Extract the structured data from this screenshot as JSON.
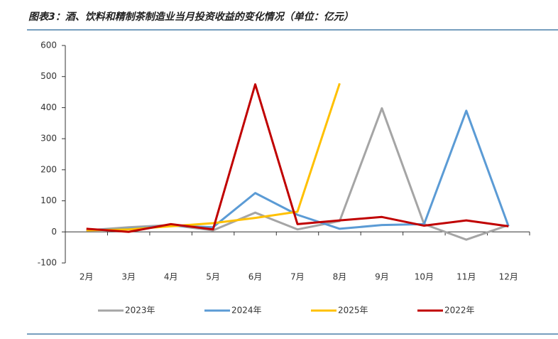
{
  "chart_data": {
    "type": "line",
    "title": "图表3：酒、饮料和精制茶制造业当月投资收益的变化情况（单位：亿元）",
    "categories": [
      "2月",
      "3月",
      "4月",
      "5月",
      "6月",
      "7月",
      "8月",
      "9月",
      "10月",
      "11月",
      "12月"
    ],
    "series": [
      {
        "name": "2023年",
        "color": "#a5a5a5",
        "values": [
          5,
          15,
          22,
          5,
          62,
          8,
          35,
          398,
          25,
          -25,
          22
        ]
      },
      {
        "name": "2024年",
        "color": "#5b9bd5",
        "values": [
          5,
          10,
          20,
          15,
          125,
          55,
          10,
          22,
          25,
          390,
          18
        ]
      },
      {
        "name": "2025年",
        "color": "#ffc000",
        "values": [
          5,
          8,
          18,
          28,
          45,
          65,
          478,
          null,
          null,
          null,
          null
        ]
      },
      {
        "name": "2022年",
        "color": "#c00000",
        "values": [
          10,
          0,
          25,
          8,
          475,
          25,
          37,
          48,
          20,
          37,
          18
        ]
      }
    ],
    "ylim": [
      -100,
      600
    ],
    "yticks": [
      -100,
      0,
      100,
      200,
      300,
      400,
      500,
      600
    ]
  }
}
